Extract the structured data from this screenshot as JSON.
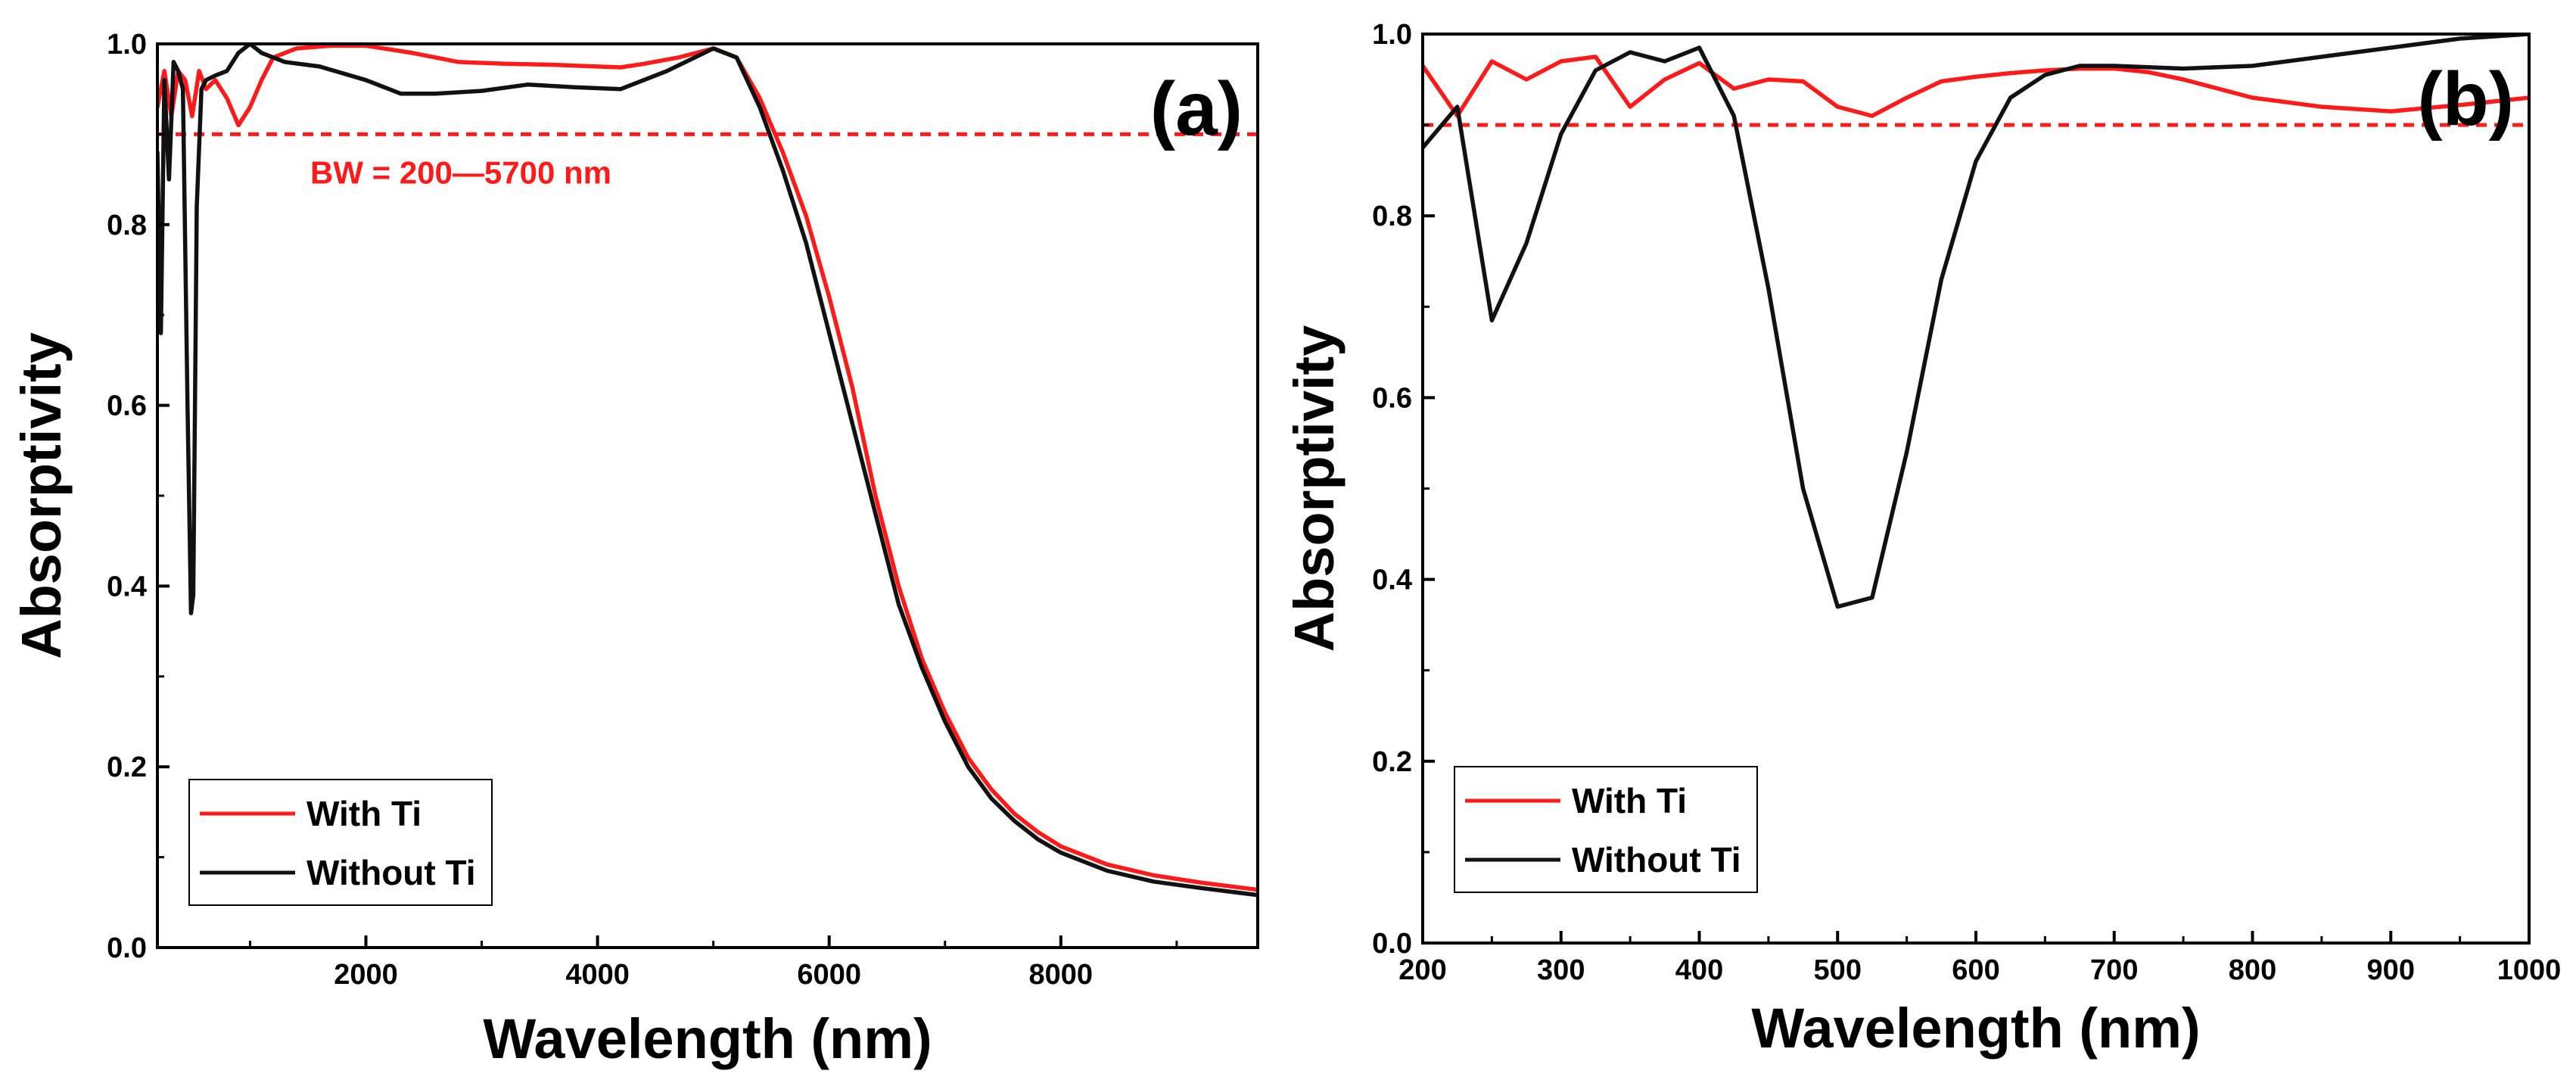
{
  "colors": {
    "with_ti": "#ff1a1a",
    "without_ti": "#111111",
    "threshold": "#ff1a1a",
    "axis": "#000000"
  },
  "chart_data": [
    {
      "type": "line",
      "panel_label": "(a)",
      "xlabel": "Wavelength (nm)",
      "ylabel": "Absorptivity",
      "xlim": [
        200,
        9700
      ],
      "ylim": [
        0.0,
        1.0
      ],
      "x_ticks": [
        2000,
        4000,
        6000,
        8000
      ],
      "x_tick_labels": [
        "2000",
        "4000",
        "6000",
        "8000"
      ],
      "y_ticks": [
        0.0,
        0.2,
        0.4,
        0.6,
        0.8,
        1.0
      ],
      "y_tick_labels": [
        "0.0",
        "0.2",
        "0.4",
        "0.6",
        "0.8",
        "1.0"
      ],
      "threshold": {
        "y": 0.9,
        "style": "dashed"
      },
      "annotation": "BW = 200—5700 nm",
      "legend": {
        "position": "bottom-left",
        "entries": [
          "With Ti",
          "Without Ti"
        ]
      },
      "series": [
        {
          "name": "With Ti",
          "x": [
            200,
            260,
            320,
            380,
            440,
            500,
            560,
            620,
            700,
            800,
            900,
            1000,
            1100,
            1200,
            1400,
            1700,
            2000,
            2400,
            2800,
            3200,
            3600,
            4000,
            4200,
            4400,
            4700,
            5000,
            5200,
            5400,
            5600,
            5800,
            6000,
            6200,
            6400,
            6600,
            6800,
            7000,
            7200,
            7400,
            7600,
            7800,
            8000,
            8400,
            8800,
            9200,
            9700
          ],
          "y": [
            0.93,
            0.97,
            0.92,
            0.97,
            0.96,
            0.92,
            0.97,
            0.95,
            0.96,
            0.94,
            0.91,
            0.93,
            0.96,
            0.985,
            0.995,
            0.998,
            0.998,
            0.99,
            0.98,
            0.978,
            0.977,
            0.975,
            0.974,
            0.978,
            0.985,
            0.995,
            0.985,
            0.94,
            0.88,
            0.81,
            0.72,
            0.62,
            0.5,
            0.4,
            0.32,
            0.26,
            0.21,
            0.175,
            0.148,
            0.128,
            0.112,
            0.092,
            0.08,
            0.072,
            0.064
          ]
        },
        {
          "name": "Without Ti",
          "x": [
            200,
            230,
            260,
            300,
            340,
            380,
            420,
            460,
            490,
            510,
            540,
            580,
            620,
            700,
            800,
            900,
            1000,
            1100,
            1300,
            1600,
            2000,
            2300,
            2600,
            3000,
            3400,
            3800,
            4200,
            4600,
            5000,
            5200,
            5400,
            5600,
            5800,
            6000,
            6200,
            6400,
            6600,
            6800,
            7000,
            7200,
            7400,
            7600,
            7800,
            8000,
            8400,
            8800,
            9200,
            9700
          ],
          "y": [
            0.88,
            0.68,
            0.96,
            0.85,
            0.98,
            0.97,
            0.95,
            0.6,
            0.37,
            0.39,
            0.82,
            0.95,
            0.96,
            0.965,
            0.97,
            0.99,
            1.0,
            0.99,
            0.98,
            0.975,
            0.96,
            0.945,
            0.945,
            0.948,
            0.955,
            0.952,
            0.95,
            0.97,
            0.995,
            0.985,
            0.93,
            0.86,
            0.78,
            0.68,
            0.58,
            0.48,
            0.38,
            0.31,
            0.25,
            0.2,
            0.165,
            0.14,
            0.12,
            0.105,
            0.085,
            0.073,
            0.066,
            0.058
          ]
        }
      ]
    },
    {
      "type": "line",
      "panel_label": "(b)",
      "xlabel": "Wavelength (nm)",
      "ylabel": "Absorptivity",
      "xlim": [
        200,
        1000
      ],
      "ylim": [
        0.0,
        1.0
      ],
      "x_ticks": [
        200,
        300,
        400,
        500,
        600,
        700,
        800,
        900,
        1000
      ],
      "x_tick_labels": [
        "200",
        "300",
        "400",
        "500",
        "600",
        "700",
        "800",
        "900",
        "1000"
      ],
      "y_ticks": [
        0.0,
        0.2,
        0.4,
        0.6,
        0.8,
        1.0
      ],
      "y_tick_labels": [
        "0.0",
        "0.2",
        "0.4",
        "0.6",
        "0.8",
        "1.0"
      ],
      "threshold": {
        "y": 0.9,
        "style": "dashed"
      },
      "legend": {
        "position": "bottom-left",
        "entries": [
          "With Ti",
          "Without Ti"
        ]
      },
      "series": [
        {
          "name": "With Ti",
          "x": [
            200,
            225,
            250,
            275,
            300,
            325,
            350,
            375,
            400,
            425,
            450,
            475,
            500,
            525,
            550,
            575,
            600,
            625,
            650,
            675,
            700,
            725,
            750,
            800,
            850,
            900,
            950,
            1000
          ],
          "y": [
            0.965,
            0.91,
            0.97,
            0.95,
            0.97,
            0.975,
            0.92,
            0.95,
            0.968,
            0.94,
            0.95,
            0.948,
            0.92,
            0.91,
            0.93,
            0.948,
            0.953,
            0.957,
            0.96,
            0.962,
            0.962,
            0.958,
            0.95,
            0.93,
            0.92,
            0.915,
            0.922,
            0.93
          ]
        },
        {
          "name": "Without Ti",
          "x": [
            200,
            225,
            250,
            275,
            300,
            325,
            350,
            375,
            400,
            425,
            450,
            475,
            500,
            525,
            550,
            575,
            600,
            625,
            650,
            675,
            700,
            750,
            800,
            850,
            900,
            950,
            1000
          ],
          "y": [
            0.875,
            0.92,
            0.685,
            0.77,
            0.89,
            0.96,
            0.98,
            0.97,
            0.985,
            0.91,
            0.72,
            0.5,
            0.37,
            0.38,
            0.54,
            0.73,
            0.86,
            0.93,
            0.955,
            0.965,
            0.965,
            0.962,
            0.965,
            0.975,
            0.985,
            0.995,
            1.0
          ]
        }
      ]
    }
  ]
}
